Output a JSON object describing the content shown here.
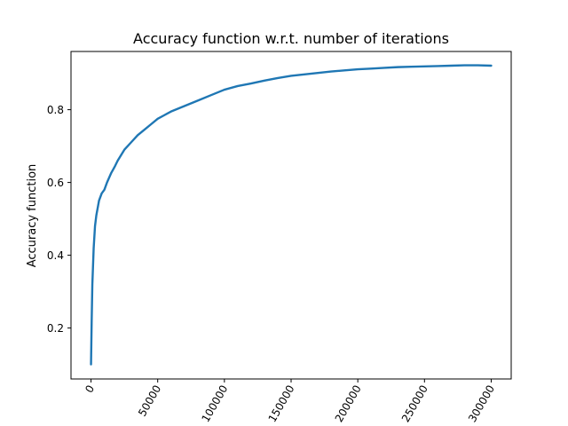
{
  "chart_data": {
    "type": "line",
    "title": "Accuracy function w.r.t. number of iterations",
    "xlabel": "",
    "ylabel": "Accuracy function",
    "xlim": [
      -15000,
      315000
    ],
    "ylim": [
      0.06,
      0.96
    ],
    "x_ticks": [
      0,
      50000,
      100000,
      150000,
      200000,
      250000,
      300000
    ],
    "x_tick_labels": [
      "0",
      "50000",
      "100000",
      "150000",
      "200000",
      "250000",
      "300000"
    ],
    "x_tick_rotation_deg": 60,
    "y_ticks": [
      0.2,
      0.4,
      0.6,
      0.8
    ],
    "y_tick_labels": [
      "0.2",
      "0.4",
      "0.6",
      "0.8"
    ],
    "grid": false,
    "legend": "none",
    "series": [
      {
        "color": "#1f77b4",
        "x": [
          0,
          500,
          1000,
          2000,
          3000,
          4000,
          5000,
          6000,
          8000,
          10000,
          12000,
          15000,
          18000,
          20000,
          25000,
          30000,
          35000,
          40000,
          45000,
          50000,
          55000,
          60000,
          70000,
          80000,
          90000,
          100000,
          110000,
          120000,
          130000,
          140000,
          150000,
          160000,
          170000,
          180000,
          190000,
          200000,
          210000,
          220000,
          230000,
          240000,
          250000,
          260000,
          270000,
          280000,
          290000,
          300000
        ],
        "y": [
          0.1,
          0.22,
          0.32,
          0.42,
          0.48,
          0.51,
          0.53,
          0.55,
          0.57,
          0.58,
          0.6,
          0.625,
          0.645,
          0.66,
          0.69,
          0.71,
          0.73,
          0.745,
          0.76,
          0.775,
          0.785,
          0.795,
          0.81,
          0.825,
          0.84,
          0.855,
          0.865,
          0.872,
          0.88,
          0.887,
          0.893,
          0.897,
          0.901,
          0.905,
          0.908,
          0.911,
          0.913,
          0.915,
          0.917,
          0.918,
          0.919,
          0.92,
          0.921,
          0.922,
          0.922,
          0.921
        ]
      }
    ]
  }
}
